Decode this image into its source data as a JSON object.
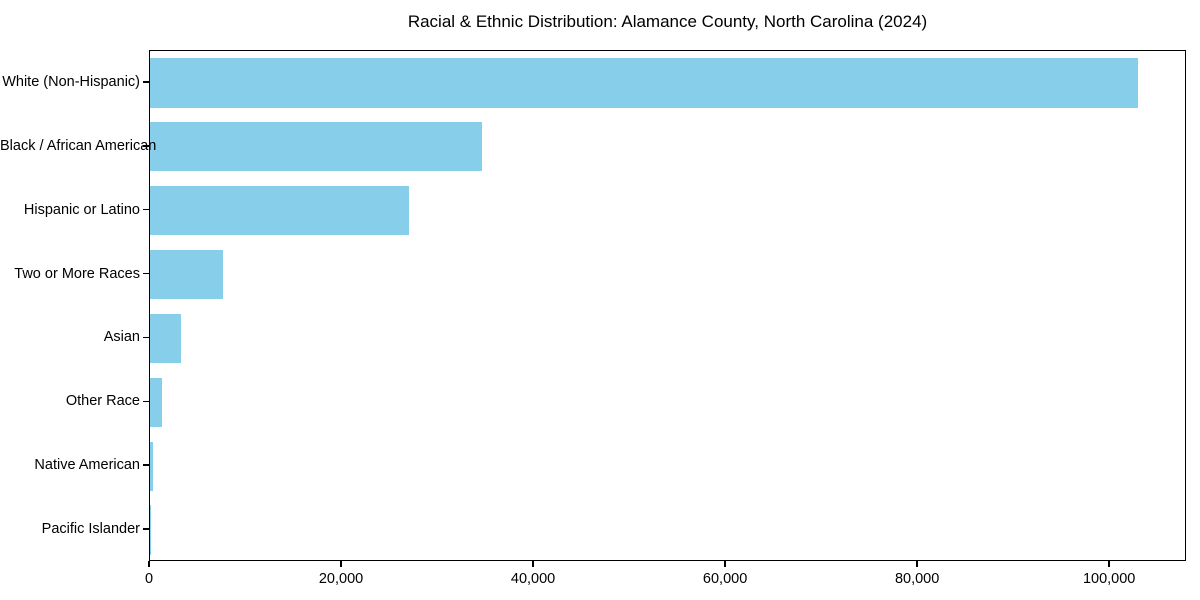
{
  "chart_data": {
    "type": "bar",
    "orientation": "horizontal",
    "title": "Racial & Ethnic Distribution: Alamance County, North Carolina (2024)",
    "categories": [
      "White (Non-Hispanic)",
      "Black / African American",
      "Hispanic or Latino",
      "Two or More Races",
      "Asian",
      "Other Race",
      "Native American",
      "Pacific Islander"
    ],
    "values": [
      102900,
      34600,
      27000,
      7600,
      3200,
      1250,
      310,
      60
    ],
    "xlabel": "",
    "ylabel": "",
    "xlim": [
      0,
      108000
    ],
    "xticks": [
      0,
      20000,
      40000,
      60000,
      80000,
      100000
    ],
    "xtick_labels": [
      "0",
      "20,000",
      "40,000",
      "60,000",
      "80,000",
      "100,000"
    ],
    "bar_color": "#87CEEB",
    "frame_color": "#000000",
    "text_color": "#000000",
    "background_color": "#ffffff",
    "grid": false,
    "legend": "none"
  }
}
